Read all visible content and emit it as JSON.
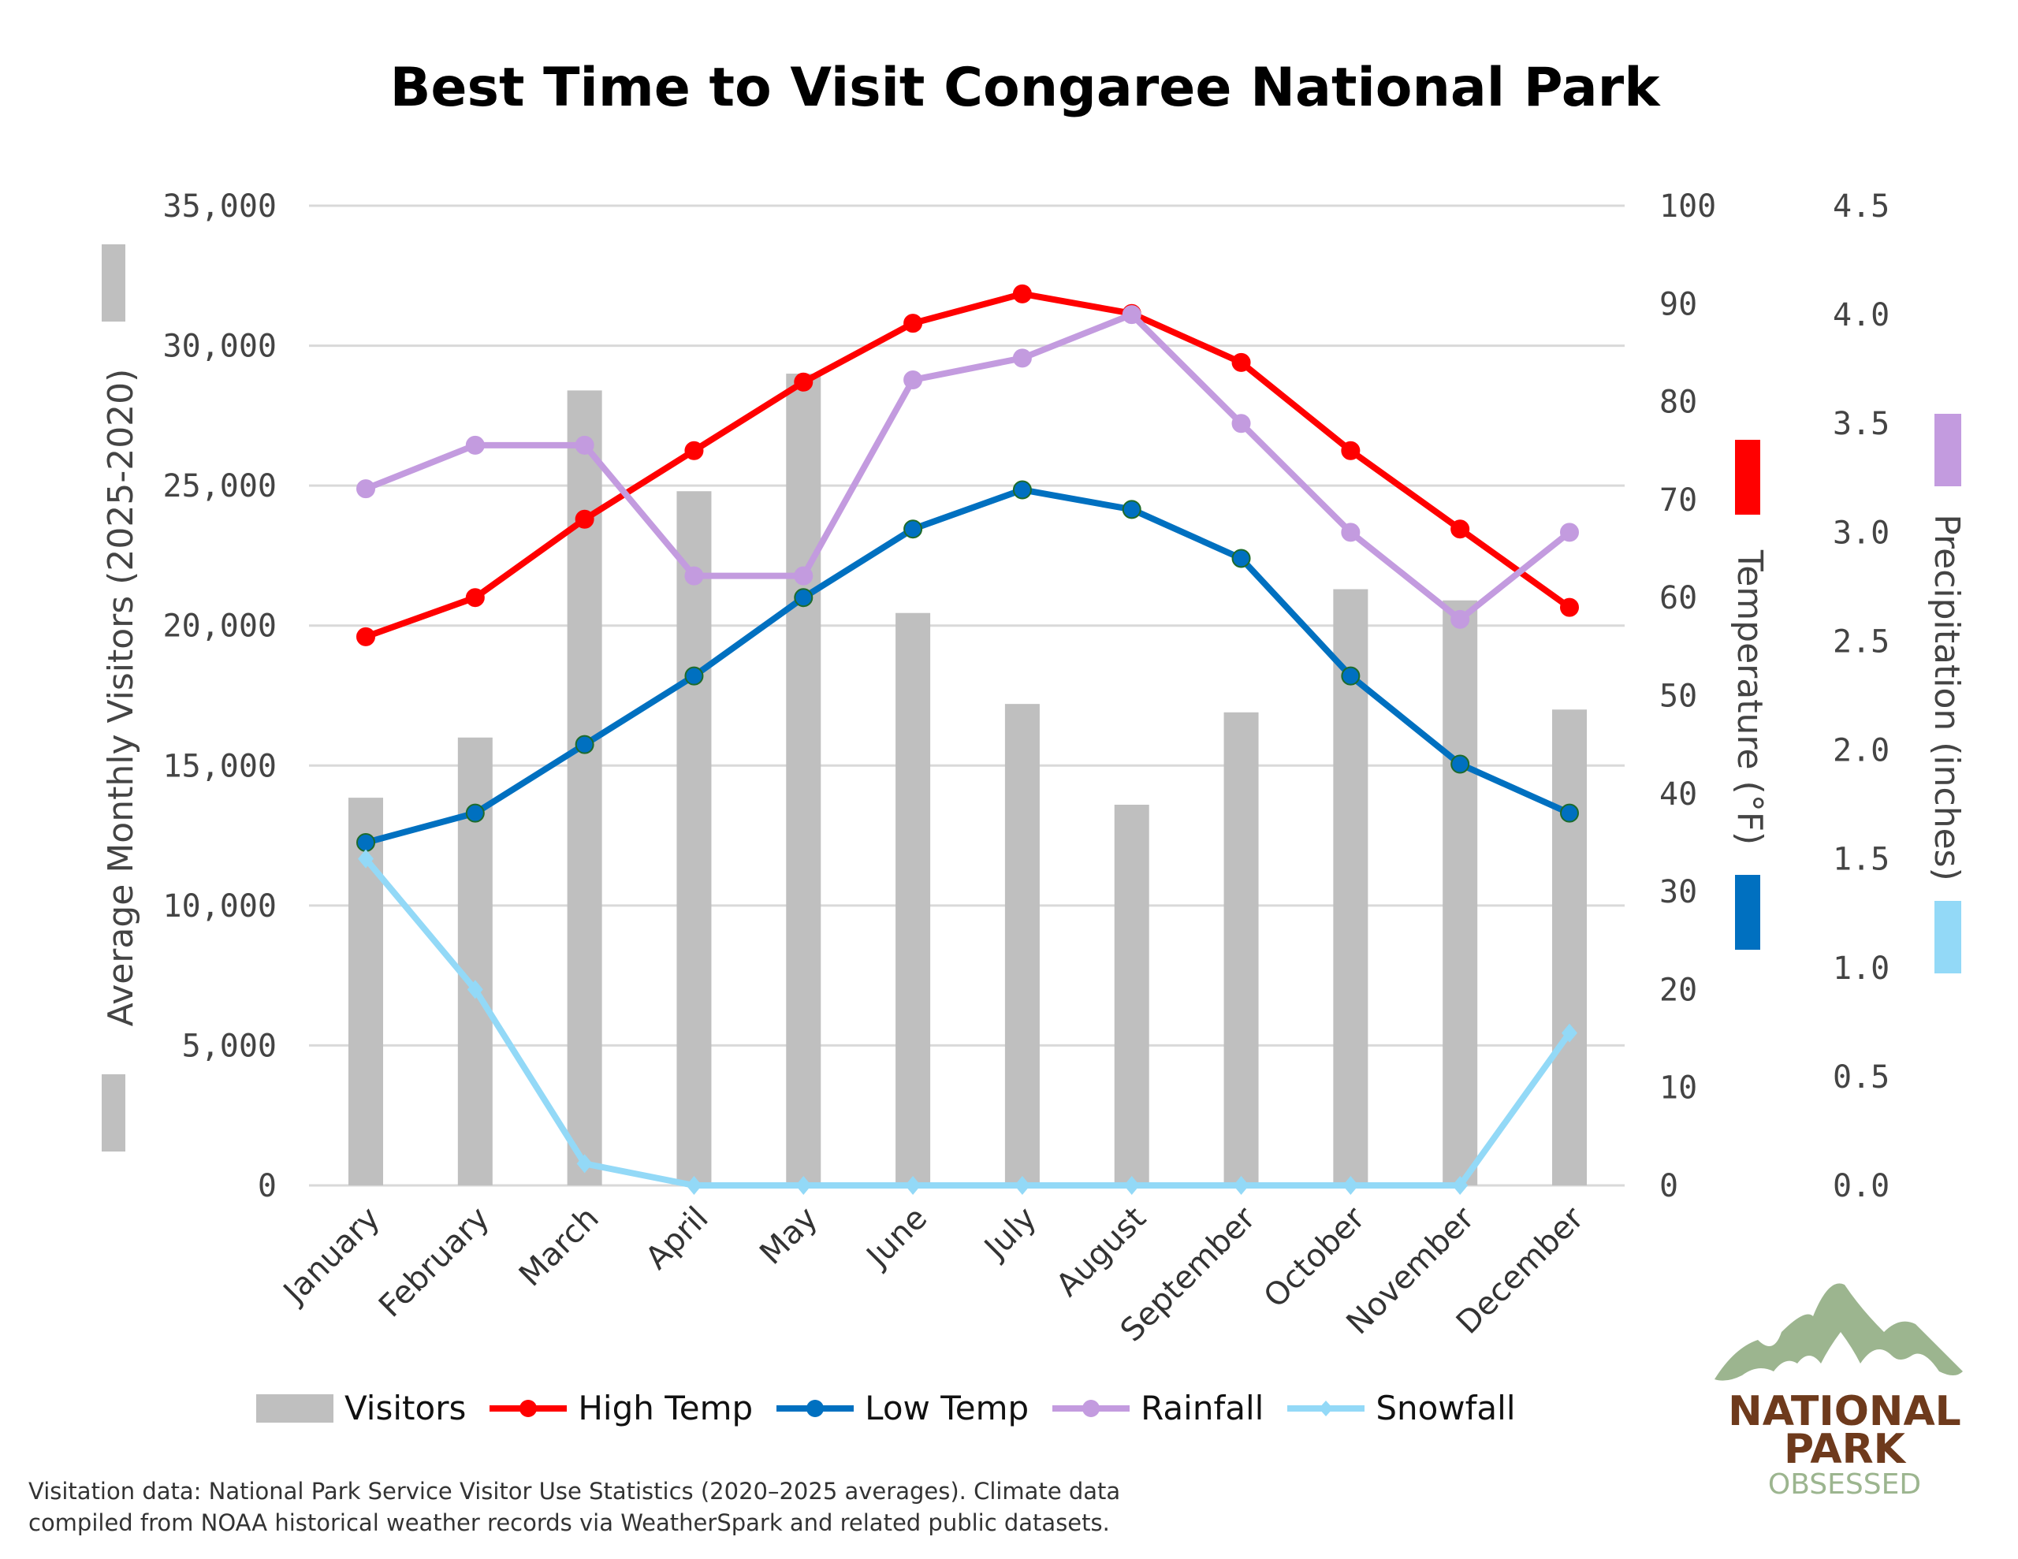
{
  "title": "Best Time to Visit Congaree National Park",
  "footnote": [
    "Visitation data: National Park Service Visitor Use Statistics (2020–2025 averages). Climate data",
    "compiled from NOAA historical weather records via WeatherSpark and related public datasets."
  ],
  "logo": {
    "line1": "NATIONAL",
    "line2": "PARK",
    "line3": "OBSESSED"
  },
  "chart_data": {
    "type": "bar+line",
    "title": "Best Time to Visit Congaree National Park",
    "categories": [
      "January",
      "February",
      "March",
      "April",
      "May",
      "June",
      "July",
      "August",
      "September",
      "October",
      "November",
      "December"
    ],
    "axes": {
      "left": {
        "label": "Average Monthly Visitors (2025-2020)",
        "range": [
          0,
          35000
        ],
        "ticks": [
          "0",
          "5,000",
          "10,000",
          "15,000",
          "20,000",
          "25,000",
          "30,000",
          "35,000"
        ]
      },
      "right1": {
        "label": "Temperature (°F)",
        "range": [
          0,
          100
        ],
        "ticks": [
          "0",
          "10",
          "20",
          "30",
          "40",
          "50",
          "60",
          "70",
          "80",
          "90",
          "100"
        ]
      },
      "right2": {
        "label": "Precipitation (inches)",
        "range": [
          0,
          4.5
        ],
        "ticks": [
          "0.0",
          "0.5",
          "1.0",
          "1.5",
          "2.0",
          "2.5",
          "3.0",
          "3.5",
          "4.0",
          "4.5"
        ]
      }
    },
    "grid": true,
    "legend_position": "bottom",
    "series": [
      {
        "name": "Visitors",
        "type": "bar",
        "axis": "left",
        "color": "#bfbfbf",
        "values": [
          13850,
          16000,
          28400,
          24800,
          29000,
          20450,
          17200,
          13600,
          16900,
          21300,
          20900,
          17000
        ]
      },
      {
        "name": "High Temp",
        "type": "line",
        "axis": "right1",
        "color": "#ff0000",
        "values": [
          56,
          60,
          68,
          75,
          82,
          88,
          91,
          89,
          84,
          75,
          67,
          59
        ]
      },
      {
        "name": "Low Temp",
        "type": "line",
        "axis": "right1",
        "color": "#0070c0",
        "values": [
          35,
          38,
          45,
          52,
          60,
          67,
          71,
          69,
          64,
          52,
          43,
          38
        ]
      },
      {
        "name": "Rainfall",
        "type": "line",
        "axis": "right2",
        "color": "#c39bdf",
        "values": [
          3.2,
          3.4,
          3.4,
          2.8,
          2.8,
          3.7,
          3.8,
          4.0,
          3.5,
          3.0,
          2.6,
          3.0
        ]
      },
      {
        "name": "Snowfall",
        "type": "line",
        "axis": "right2",
        "color": "#93d9f7",
        "values": [
          1.5,
          0.9,
          0.1,
          0,
          0,
          0,
          0,
          0,
          0,
          0,
          0,
          0.7
        ]
      }
    ]
  }
}
